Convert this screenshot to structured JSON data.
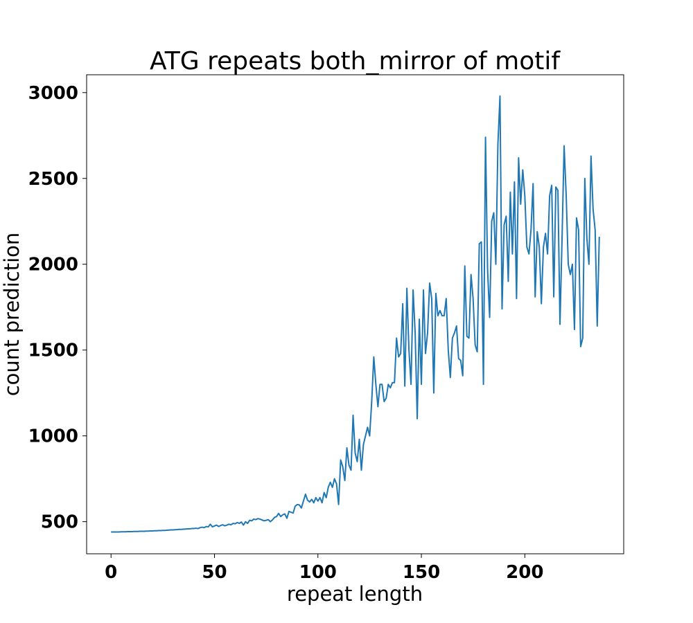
{
  "chart_data": {
    "type": "line",
    "title": "ATG repeats both_mirror of motif",
    "xlabel": "repeat length",
    "ylabel": "count prediction",
    "x": [
      0,
      1,
      2,
      3,
      4,
      5,
      6,
      7,
      8,
      9,
      10,
      11,
      12,
      13,
      14,
      15,
      16,
      17,
      18,
      19,
      20,
      21,
      22,
      23,
      24,
      25,
      26,
      27,
      28,
      29,
      30,
      31,
      32,
      33,
      34,
      35,
      36,
      37,
      38,
      39,
      40,
      41,
      42,
      43,
      44,
      45,
      46,
      47,
      48,
      49,
      50,
      51,
      52,
      53,
      54,
      55,
      56,
      57,
      58,
      59,
      60,
      61,
      62,
      63,
      64,
      65,
      66,
      67,
      68,
      69,
      70,
      71,
      72,
      73,
      74,
      75,
      76,
      77,
      78,
      79,
      80,
      81,
      82,
      83,
      84,
      85,
      86,
      87,
      88,
      89,
      90,
      91,
      92,
      93,
      94,
      95,
      96,
      97,
      98,
      99,
      100,
      101,
      102,
      103,
      104,
      105,
      106,
      107,
      108,
      109,
      110,
      111,
      112,
      113,
      114,
      115,
      116,
      117,
      118,
      119,
      120,
      121,
      122,
      123,
      124,
      125,
      126,
      127,
      128,
      129,
      130,
      131,
      132,
      133,
      134,
      135,
      136,
      137,
      138,
      139,
      140,
      141,
      142,
      143,
      144,
      145,
      146,
      147,
      148,
      149,
      150,
      151,
      152,
      153,
      154,
      155,
      156,
      157,
      158,
      159,
      160,
      161,
      162,
      163,
      164,
      165,
      166,
      167,
      168,
      169,
      170,
      171,
      172,
      173,
      174,
      175,
      176,
      177,
      178,
      179,
      180,
      181,
      182,
      183,
      184,
      185,
      186,
      187,
      188,
      189,
      190,
      191,
      192,
      193,
      194,
      195,
      196,
      197,
      198,
      199,
      200,
      201,
      202,
      203,
      204,
      205,
      206,
      207,
      208,
      209,
      210,
      211,
      212,
      213,
      214,
      215,
      216,
      217,
      218,
      219,
      220,
      221,
      222,
      223,
      224,
      225,
      226,
      227,
      228,
      229,
      230,
      231,
      232,
      233,
      234,
      235,
      236
    ],
    "series": [
      {
        "name": "count prediction",
        "color": "#1f77b4",
        "values": [
          440,
          440,
          440,
          440,
          440,
          441,
          441,
          441,
          442,
          442,
          442,
          443,
          443,
          443,
          444,
          444,
          444,
          445,
          445,
          446,
          446,
          447,
          447,
          448,
          448,
          449,
          449,
          450,
          451,
          452,
          452,
          453,
          454,
          455,
          455,
          456,
          457,
          458,
          458,
          460,
          460,
          462,
          460,
          465,
          468,
          465,
          472,
          470,
          485,
          470,
          475,
          480,
          472,
          478,
          482,
          476,
          480,
          485,
          482,
          490,
          488,
          495,
          490,
          498,
          480,
          500,
          490,
          508,
          505,
          515,
          512,
          518,
          515,
          510,
          505,
          508,
          512,
          500,
          510,
          525,
          530,
          548,
          530,
          540,
          545,
          520,
          560,
          555,
          550,
          590,
          600,
          598,
          580,
          620,
          660,
          625,
          615,
          630,
          610,
          640,
          620,
          640,
          610,
          670,
          640,
          700,
          730,
          700,
          750,
          720,
          600,
          860,
          820,
          740,
          930,
          830,
          800,
          1120,
          900,
          850,
          980,
          800,
          950,
          1000,
          1050,
          1000,
          1200,
          1460,
          1300,
          1170,
          1300,
          1300,
          1200,
          1220,
          1300,
          1280,
          1310,
          1310,
          1570,
          1460,
          1480,
          1770,
          1290,
          1860,
          1500,
          1300,
          1850,
          1600,
          1100,
          1680,
          1300,
          1850,
          1480,
          1600,
          1890,
          1800,
          1250,
          1830,
          1700,
          1730,
          1700,
          1700,
          1800,
          1500,
          1340,
          1570,
          1600,
          1640,
          1450,
          1440,
          1350,
          1990,
          1580,
          1570,
          1940,
          1800,
          1530,
          1490,
          2120,
          2130,
          1300,
          2740,
          1970,
          1690,
          2250,
          2300,
          2000,
          2700,
          2980,
          1740,
          2230,
          2280,
          1900,
          2420,
          2060,
          2480,
          1800,
          2620,
          2350,
          2550,
          2400,
          2100,
          2060,
          2200,
          2470,
          1810,
          2190,
          2100,
          1770,
          2100,
          2180,
          2060,
          2400,
          2460,
          1810,
          2450,
          2430,
          1650,
          2150,
          2690,
          2400,
          2000,
          1940,
          2000,
          1620,
          2270,
          2200,
          1520,
          1570,
          2500,
          2150,
          2000,
          2630,
          2320,
          2200,
          1640,
          2160
        ]
      }
    ],
    "xlim": [
      -11.8,
      247.8
    ],
    "ylim": [
      313,
      3104
    ],
    "xticks": [
      0,
      50,
      100,
      150,
      200
    ],
    "yticks": [
      500,
      1000,
      1500,
      2000,
      2500,
      3000
    ]
  }
}
